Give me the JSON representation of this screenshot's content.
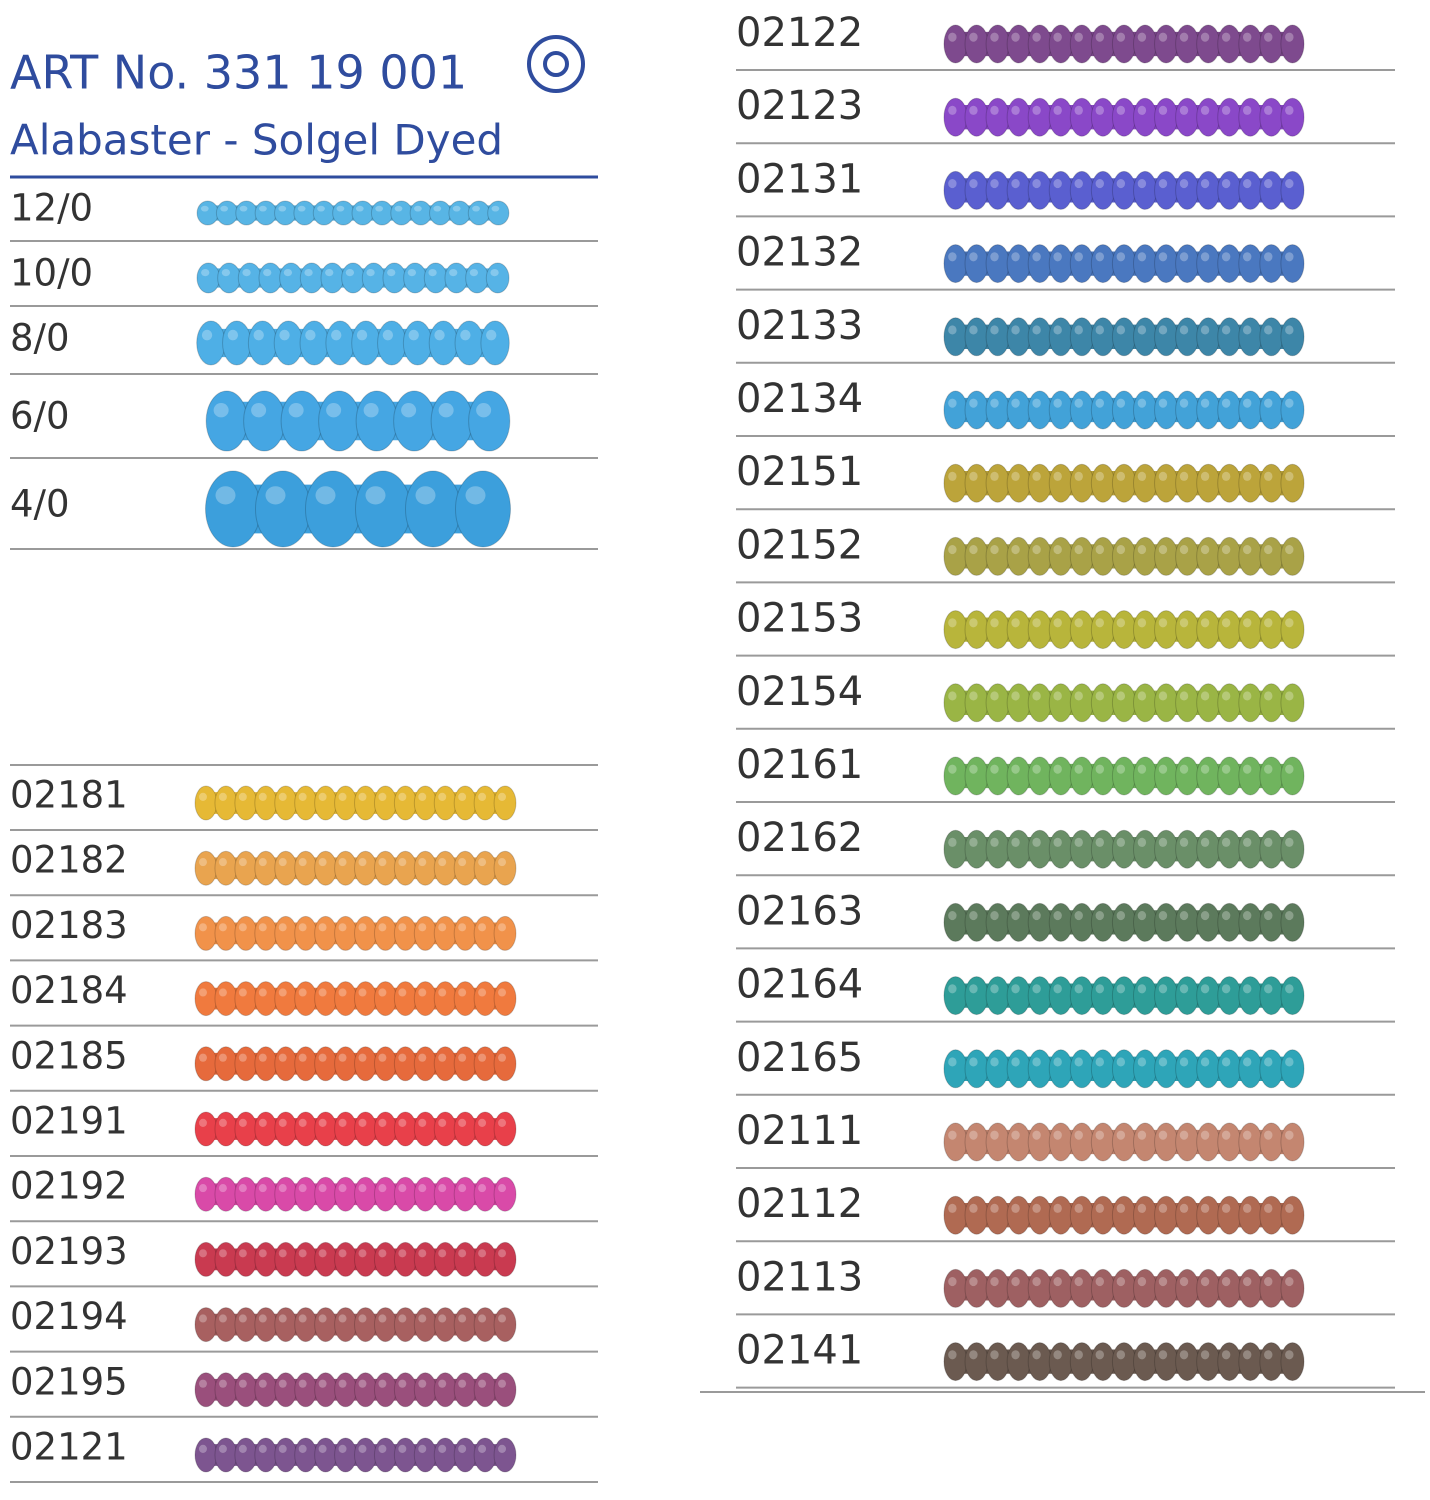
{
  "header": {
    "title": "ART No. 331 19 001",
    "subtitle": "Alabaster - Solgel Dyed"
  },
  "sizes": [
    {
      "label": "12/0",
      "color": "#58b5e5"
    },
    {
      "label": "10/0",
      "color": "#56b3e6"
    },
    {
      "label": "8/0",
      "color": "#4eafe6"
    },
    {
      "label": "6/0",
      "color": "#45a6e3"
    },
    {
      "label": "4/0",
      "color": "#3c9fdc"
    }
  ],
  "left_colors": [
    {
      "code": "02181",
      "color": "#e6b935"
    },
    {
      "code": "02182",
      "color": "#e9a44f"
    },
    {
      "code": "02183",
      "color": "#f1924a"
    },
    {
      "code": "02184",
      "color": "#f07a3e"
    },
    {
      "code": "02185",
      "color": "#e66a3c"
    },
    {
      "code": "02191",
      "color": "#e8404a"
    },
    {
      "code": "02192",
      "color": "#d94aa8"
    },
    {
      "code": "02193",
      "color": "#c93a50"
    },
    {
      "code": "02194",
      "color": "#a86060"
    },
    {
      "code": "02195",
      "color": "#9a4f7c"
    },
    {
      "code": "02121",
      "color": "#7d5590"
    }
  ],
  "right_colors": [
    {
      "code": "02122",
      "color": "#7e4a8e"
    },
    {
      "code": "02123",
      "color": "#8a48c8"
    },
    {
      "code": "02131",
      "color": "#5a5fd0"
    },
    {
      "code": "02132",
      "color": "#4a78c0"
    },
    {
      "code": "02133",
      "color": "#3d86a8"
    },
    {
      "code": "02134",
      "color": "#42a2d8"
    },
    {
      "code": "02151",
      "color": "#bca43a"
    },
    {
      "code": "02152",
      "color": "#a9a247"
    },
    {
      "code": "02153",
      "color": "#b8b53b"
    },
    {
      "code": "02154",
      "color": "#9ab545"
    },
    {
      "code": "02161",
      "color": "#70b45e"
    },
    {
      "code": "02162",
      "color": "#6a8f68"
    },
    {
      "code": "02163",
      "color": "#5c7a5c"
    },
    {
      "code": "02164",
      "color": "#2e9d98"
    },
    {
      "code": "02165",
      "color": "#2ea5b8"
    },
    {
      "code": "02111",
      "color": "#c48670"
    },
    {
      "code": "02112",
      "color": "#b06a52"
    },
    {
      "code": "02113",
      "color": "#9e6062"
    },
    {
      "code": "02141",
      "color": "#6b5a50"
    }
  ]
}
